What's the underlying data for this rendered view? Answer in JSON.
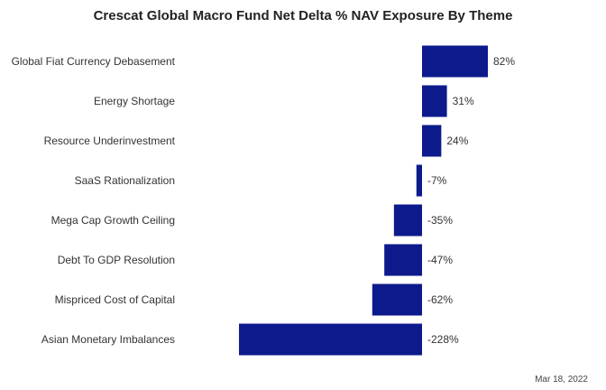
{
  "chart_data": {
    "type": "bar",
    "orientation": "horizontal",
    "title": "Crescat Global Macro Fund Net Delta % NAV Exposure By Theme",
    "categories": [
      "Global Fiat Currency Debasement",
      "Energy Shortage",
      "Resource Underinvestment",
      "SaaS Rationalization",
      "Mega Cap Growth Ceiling",
      "Debt To GDP Resolution",
      "Mispriced Cost of Capital",
      "Asian Monetary Imbalances"
    ],
    "values": [
      82,
      31,
      24,
      -7,
      -35,
      -47,
      -62,
      -228
    ],
    "data_labels": [
      "82%",
      "31%",
      "24%",
      "-7%",
      "-35%",
      "-47%",
      "-62%",
      "-228%"
    ],
    "bar_color": "#0d1a8c",
    "xlim": [
      -228,
      82
    ],
    "grid": false,
    "legend": "none",
    "date": "Mar 18, 2022"
  }
}
